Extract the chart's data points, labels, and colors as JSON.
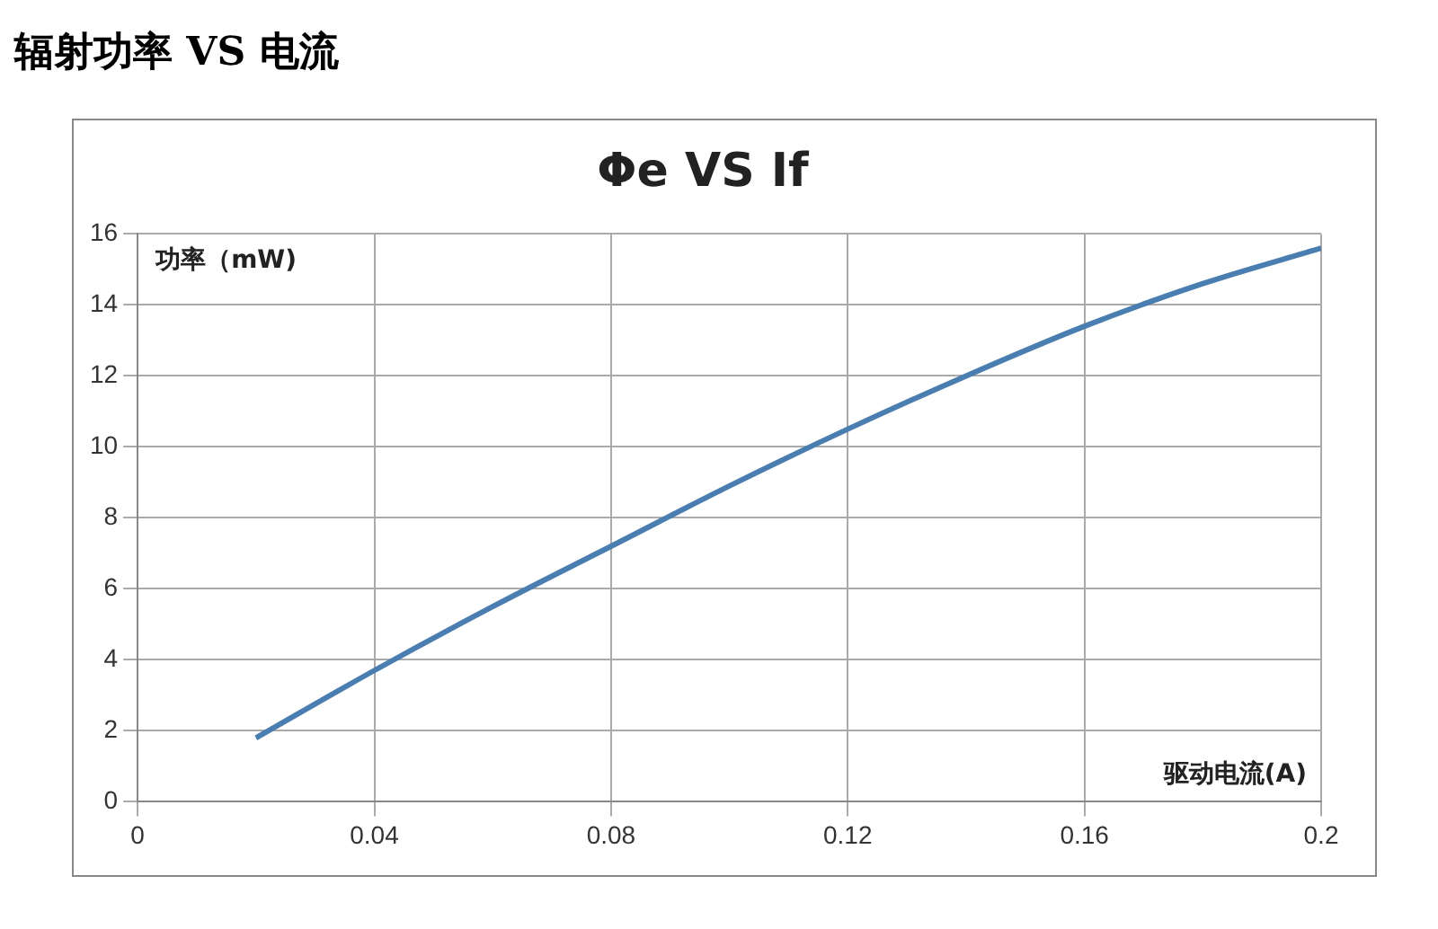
{
  "chart_data": {
    "type": "line",
    "title": "辐射功率 VS 电流",
    "subtitle": "Φe VS If",
    "xlabel": "驱动电流(A)",
    "ylabel": "功率（mW)",
    "x": [
      0.02,
      0.04,
      0.06,
      0.08,
      0.1,
      0.12,
      0.14,
      0.16,
      0.18,
      0.2
    ],
    "series": [
      {
        "color": "#4a7eb0",
        "values": [
          1.8,
          3.7,
          5.5,
          7.2,
          8.9,
          10.5,
          12.0,
          13.4,
          14.6,
          15.6
        ]
      }
    ],
    "xlim": [
      0,
      0.2
    ],
    "xticks": [
      0,
      0.04,
      0.08,
      0.12,
      0.16,
      0.2
    ],
    "ylim": [
      0,
      16
    ],
    "yticks": [
      0,
      2,
      4,
      6,
      8,
      10,
      12,
      14,
      16
    ],
    "grid": true,
    "legend": false,
    "marker": "none",
    "line_style": "solid"
  }
}
